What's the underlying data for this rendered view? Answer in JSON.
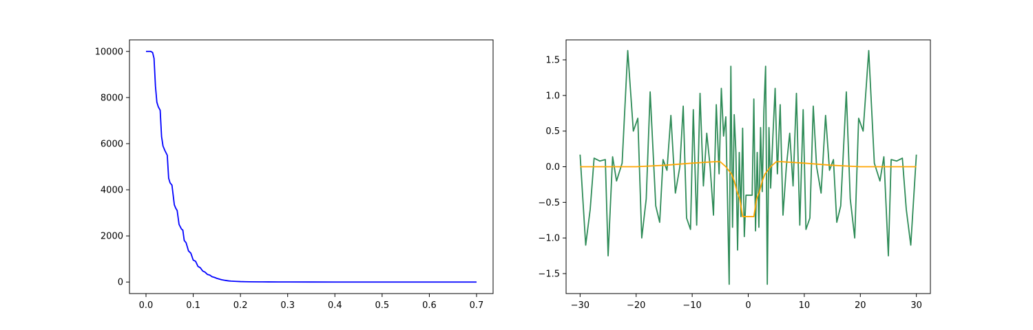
{
  "chart_data": [
    {
      "type": "line",
      "title": "",
      "xlabel": "",
      "ylabel": "",
      "xlim": [
        -0.035,
        0.735
      ],
      "ylim": [
        -500,
        10500
      ],
      "grid": false,
      "xticks": [
        0.0,
        0.1,
        0.2,
        0.3,
        0.4,
        0.5,
        0.6,
        0.7
      ],
      "xtick_labels": [
        "0.0",
        "0.1",
        "0.2",
        "0.3",
        "0.4",
        "0.5",
        "0.6",
        "0.7"
      ],
      "yticks": [
        0,
        2000,
        4000,
        6000,
        8000,
        10000
      ],
      "ytick_labels": [
        "0",
        "2000",
        "4000",
        "6000",
        "8000",
        "10000"
      ],
      "series": [
        {
          "color": "#0000ff",
          "x": [
            0.0,
            0.01,
            0.014,
            0.017,
            0.02,
            0.023,
            0.026,
            0.03,
            0.033,
            0.036,
            0.04,
            0.045,
            0.048,
            0.051,
            0.055,
            0.06,
            0.063,
            0.066,
            0.07,
            0.075,
            0.078,
            0.081,
            0.085,
            0.09,
            0.095,
            0.1,
            0.105,
            0.11,
            0.115,
            0.12,
            0.125,
            0.13,
            0.135,
            0.14,
            0.145,
            0.15,
            0.155,
            0.16,
            0.165,
            0.17,
            0.175,
            0.18,
            0.19,
            0.2,
            0.21,
            0.22,
            0.24,
            0.26,
            0.28,
            0.3,
            0.35,
            0.4,
            0.5,
            0.6,
            0.7
          ],
          "y": [
            10000,
            10000,
            9950,
            9700,
            8500,
            7800,
            7600,
            7450,
            6300,
            5900,
            5700,
            5500,
            4500,
            4300,
            4200,
            3350,
            3200,
            3100,
            2500,
            2300,
            2250,
            1800,
            1700,
            1350,
            1250,
            950,
            900,
            680,
            620,
            480,
            430,
            330,
            300,
            230,
            200,
            160,
            130,
            100,
            80,
            65,
            50,
            40,
            30,
            20,
            15,
            10,
            7,
            5,
            3,
            2,
            1,
            0,
            0,
            0,
            0
          ]
        }
      ]
    },
    {
      "type": "line",
      "title": "",
      "xlabel": "",
      "ylabel": "",
      "xlim": [
        -32.5,
        32.5
      ],
      "ylim": [
        -1.78,
        1.78
      ],
      "grid": false,
      "xticks": [
        -30,
        -20,
        -10,
        0,
        10,
        20,
        30
      ],
      "xtick_labels": [
        "−30",
        "−20",
        "−10",
        "0",
        "10",
        "20",
        "30"
      ],
      "yticks": [
        -1.5,
        -1.0,
        -0.5,
        0.0,
        0.5,
        1.0,
        1.5
      ],
      "ytick_labels": [
        "−1.5",
        "−1.0",
        "−0.5",
        "0.0",
        "0.5",
        "1.0",
        "1.5"
      ],
      "series": [
        {
          "color": "#2e8b57",
          "x": [
            -30.0,
            -29.0,
            -28.2,
            -27.5,
            -26.5,
            -25.5,
            -25.0,
            -24.2,
            -23.5,
            -22.5,
            -21.5,
            -20.5,
            -19.7,
            -19.0,
            -18.2,
            -17.5,
            -16.5,
            -15.8,
            -15.2,
            -14.5,
            -13.8,
            -13.0,
            -12.2,
            -11.6,
            -11.0,
            -10.3,
            -9.8,
            -9.2,
            -8.6,
            -8.0,
            -7.4,
            -6.8,
            -6.2,
            -5.7,
            -5.2,
            -4.8,
            -4.4,
            -4.0,
            -3.7,
            -3.4,
            -3.1,
            -2.8,
            -2.5,
            -2.2,
            -1.9,
            -1.6,
            -1.3,
            -1.0,
            -0.7,
            -0.4,
            0.0,
            0.4,
            0.7,
            1.0,
            1.3,
            1.6,
            1.9,
            2.2,
            2.5,
            2.8,
            3.1,
            3.4,
            3.7,
            4.0,
            4.4,
            4.8,
            5.2,
            5.7,
            6.2,
            6.8,
            7.4,
            8.0,
            8.6,
            9.2,
            9.8,
            10.3,
            11.0,
            11.6,
            12.2,
            13.0,
            13.8,
            14.5,
            15.2,
            15.8,
            16.5,
            17.5,
            18.2,
            19.0,
            19.7,
            20.5,
            21.5,
            22.5,
            23.5,
            24.2,
            25.0,
            25.5,
            26.5,
            27.5,
            28.2,
            29.0,
            30.0
          ],
          "y": [
            0.17,
            -1.1,
            -0.6,
            0.12,
            0.08,
            0.1,
            -1.25,
            0.14,
            -0.2,
            0.05,
            1.63,
            0.5,
            0.68,
            -1.0,
            -0.45,
            1.05,
            -0.55,
            -0.78,
            0.1,
            -0.05,
            0.72,
            -0.37,
            0.0,
            0.85,
            -0.72,
            -0.88,
            0.8,
            -0.82,
            1.03,
            -0.27,
            0.47,
            0.0,
            -0.68,
            0.87,
            -0.1,
            1.1,
            0.43,
            0.7,
            -0.45,
            -1.65,
            1.41,
            -0.85,
            0.73,
            0.2,
            -1.17,
            0.2,
            -0.7,
            0.54,
            -0.98,
            -0.4,
            -0.4,
            -0.4,
            -0.4,
            0.95,
            -0.9,
            0.2,
            -0.85,
            0.55,
            -0.35,
            0.8,
            1.41,
            -1.65,
            0.55,
            -0.3,
            0.43,
            1.1,
            -0.1,
            0.87,
            -0.68,
            0.0,
            0.47,
            -0.27,
            1.03,
            -0.82,
            0.8,
            -0.88,
            -0.72,
            0.85,
            0.0,
            -0.37,
            0.72,
            -0.05,
            0.1,
            -0.78,
            -0.55,
            1.05,
            -0.45,
            -1.0,
            0.68,
            0.5,
            1.63,
            0.05,
            -0.2,
            0.14,
            -1.25,
            0.1,
            0.08,
            0.12,
            -0.6,
            -1.1,
            0.17
          ]
        },
        {
          "color": "#ffa500",
          "x": [
            -30,
            -20,
            -15,
            -10,
            -8,
            -6,
            -5,
            -4,
            -3,
            -2.5,
            -2,
            -1.5,
            -1.2,
            -1.0,
            1.0,
            1.2,
            1.5,
            2,
            2.5,
            3,
            4,
            5,
            6,
            8,
            10,
            15,
            20,
            30
          ],
          "y": [
            0.0,
            0.0,
            0.02,
            0.05,
            0.06,
            0.07,
            0.07,
            0.0,
            -0.1,
            -0.2,
            -0.35,
            -0.45,
            -0.6,
            -0.7,
            -0.7,
            -0.6,
            -0.45,
            -0.35,
            -0.2,
            -0.1,
            0.0,
            0.07,
            0.07,
            0.06,
            0.05,
            0.02,
            0.0,
            0.0
          ]
        }
      ]
    }
  ]
}
